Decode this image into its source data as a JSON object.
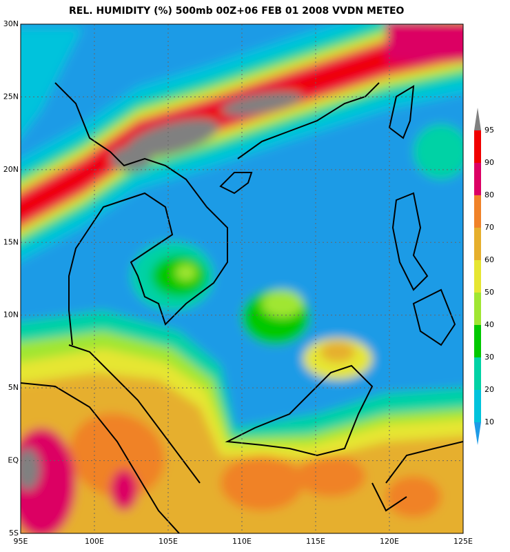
{
  "title": "REL. HUMIDITY (%) 500mb 00Z+06 FEB 01 2008 VVDN METEO",
  "map": {
    "lon_labels": [
      "95E",
      "100E",
      "105E",
      "110E",
      "115E",
      "120E",
      "125E"
    ],
    "lat_labels": [
      "30N",
      "25N",
      "20N",
      "15N",
      "10N",
      "5N",
      "EQ",
      "5S"
    ]
  },
  "colorbar": {
    "levels": [
      10,
      20,
      30,
      40,
      50,
      60,
      70,
      80,
      90,
      95
    ],
    "colors": [
      "#1e9be6",
      "#00c3dc",
      "#00d2a5",
      "#00c800",
      "#a0e632",
      "#e6e632",
      "#e6af2d",
      "#f08228",
      "#dc0064",
      "#f00000",
      "#808080"
    ]
  }
}
